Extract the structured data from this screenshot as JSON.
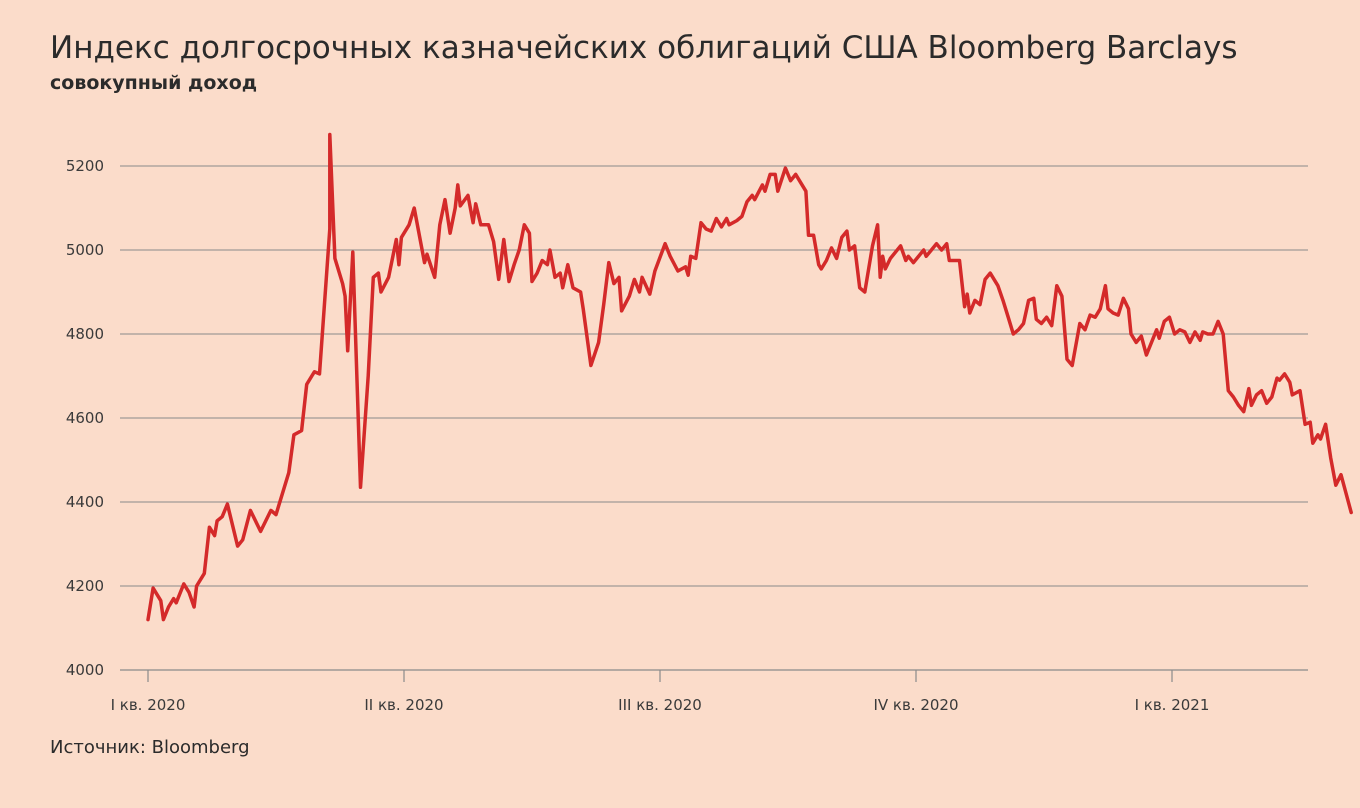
{
  "chart_data": {
    "type": "line",
    "title": "Индекс долгосрочных казначейских облигаций США Bloomberg Barclays",
    "subtitle": "совокупный доход",
    "source": "Источник: Bloomberg",
    "xlabel": "",
    "ylabel": "",
    "ylim": [
      4000,
      5300
    ],
    "yticks": [
      4000,
      4200,
      4400,
      4600,
      4800,
      5000,
      5200
    ],
    "ytick_labels": [
      "4000",
      "4200",
      "4400",
      "4600",
      "4800",
      "5000",
      "5200"
    ],
    "xticks": [
      {
        "label": "I кв. 2020",
        "t": 0
      },
      {
        "label": "II кв. 2020",
        "t": 1
      },
      {
        "label": "III кв. 2020",
        "t": 2
      },
      {
        "label": "IV кв. 2020",
        "t": 3
      },
      {
        "label": "I кв. 2021",
        "t": 4
      }
    ],
    "grid": true,
    "line_color": "#d42a2a",
    "series": [
      {
        "name": "",
        "points": [
          [
            0.0,
            4120
          ],
          [
            0.02,
            4195
          ],
          [
            0.05,
            4165
          ],
          [
            0.06,
            4120
          ],
          [
            0.08,
            4150
          ],
          [
            0.1,
            4170
          ],
          [
            0.11,
            4160
          ],
          [
            0.14,
            4205
          ],
          [
            0.16,
            4185
          ],
          [
            0.18,
            4150
          ],
          [
            0.19,
            4200
          ],
          [
            0.22,
            4230
          ],
          [
            0.24,
            4340
          ],
          [
            0.26,
            4320
          ],
          [
            0.27,
            4355
          ],
          [
            0.29,
            4365
          ],
          [
            0.31,
            4395
          ],
          [
            0.35,
            4295
          ],
          [
            0.37,
            4310
          ],
          [
            0.4,
            4380
          ],
          [
            0.44,
            4330
          ],
          [
            0.48,
            4380
          ],
          [
            0.5,
            4370
          ],
          [
            0.55,
            4470
          ],
          [
            0.57,
            4560
          ],
          [
            0.6,
            4570
          ],
          [
            0.62,
            4680
          ],
          [
            0.64,
            4700
          ],
          [
            0.65,
            4710
          ],
          [
            0.67,
            4705
          ],
          [
            0.71,
            5050
          ],
          [
            0.71,
            5275
          ],
          [
            0.73,
            4980
          ],
          [
            0.76,
            4920
          ],
          [
            0.77,
            4890
          ],
          [
            0.78,
            4760
          ],
          [
            0.8,
            4995
          ],
          [
            0.83,
            4435
          ],
          [
            0.86,
            4700
          ],
          [
            0.88,
            4935
          ],
          [
            0.9,
            4945
          ],
          [
            0.91,
            4900
          ],
          [
            0.94,
            4935
          ],
          [
            0.97,
            5025
          ],
          [
            0.98,
            4965
          ],
          [
            0.99,
            5030
          ],
          [
            1.02,
            5060
          ],
          [
            1.04,
            5100
          ],
          [
            1.08,
            4970
          ],
          [
            1.09,
            4990
          ],
          [
            1.12,
            4935
          ],
          [
            1.14,
            5060
          ],
          [
            1.16,
            5120
          ],
          [
            1.18,
            5040
          ],
          [
            1.2,
            5100
          ],
          [
            1.21,
            5155
          ],
          [
            1.22,
            5105
          ],
          [
            1.25,
            5130
          ],
          [
            1.27,
            5065
          ],
          [
            1.28,
            5110
          ],
          [
            1.3,
            5060
          ],
          [
            1.33,
            5060
          ],
          [
            1.35,
            5020
          ],
          [
            1.37,
            4930
          ],
          [
            1.39,
            5025
          ],
          [
            1.41,
            4925
          ],
          [
            1.43,
            4965
          ],
          [
            1.45,
            5000
          ],
          [
            1.47,
            5060
          ],
          [
            1.49,
            5040
          ],
          [
            1.5,
            4925
          ],
          [
            1.52,
            4945
          ],
          [
            1.54,
            4975
          ],
          [
            1.56,
            4965
          ],
          [
            1.57,
            5000
          ],
          [
            1.59,
            4935
          ],
          [
            1.61,
            4945
          ],
          [
            1.62,
            4910
          ],
          [
            1.64,
            4965
          ],
          [
            1.66,
            4910
          ],
          [
            1.69,
            4900
          ],
          [
            1.7,
            4860
          ],
          [
            1.73,
            4725
          ],
          [
            1.76,
            4780
          ],
          [
            1.78,
            4870
          ],
          [
            1.8,
            4970
          ],
          [
            1.82,
            4920
          ],
          [
            1.84,
            4935
          ],
          [
            1.85,
            4855
          ],
          [
            1.88,
            4890
          ],
          [
            1.9,
            4930
          ],
          [
            1.92,
            4900
          ],
          [
            1.93,
            4935
          ],
          [
            1.96,
            4895
          ],
          [
            1.98,
            4950
          ],
          [
            2.02,
            5015
          ],
          [
            2.04,
            4985
          ],
          [
            2.07,
            4950
          ],
          [
            2.1,
            4960
          ],
          [
            2.11,
            4940
          ],
          [
            2.12,
            4985
          ],
          [
            2.14,
            4980
          ],
          [
            2.16,
            5065
          ],
          [
            2.18,
            5050
          ],
          [
            2.2,
            5045
          ],
          [
            2.22,
            5075
          ],
          [
            2.24,
            5055
          ],
          [
            2.26,
            5075
          ],
          [
            2.27,
            5060
          ],
          [
            2.3,
            5070
          ],
          [
            2.32,
            5080
          ],
          [
            2.34,
            5115
          ],
          [
            2.36,
            5130
          ],
          [
            2.37,
            5120
          ],
          [
            2.4,
            5155
          ],
          [
            2.41,
            5140
          ],
          [
            2.43,
            5180
          ],
          [
            2.45,
            5180
          ],
          [
            2.46,
            5140
          ],
          [
            2.49,
            5195
          ],
          [
            2.51,
            5165
          ],
          [
            2.53,
            5180
          ],
          [
            2.55,
            5160
          ],
          [
            2.57,
            5140
          ],
          [
            2.58,
            5035
          ],
          [
            2.6,
            5035
          ],
          [
            2.62,
            4965
          ],
          [
            2.63,
            4955
          ],
          [
            2.65,
            4975
          ],
          [
            2.67,
            5005
          ],
          [
            2.69,
            4980
          ],
          [
            2.71,
            5030
          ],
          [
            2.73,
            5045
          ],
          [
            2.74,
            5000
          ],
          [
            2.76,
            5010
          ],
          [
            2.78,
            4910
          ],
          [
            2.8,
            4900
          ],
          [
            2.83,
            5010
          ],
          [
            2.85,
            5060
          ],
          [
            2.86,
            4935
          ],
          [
            2.87,
            4985
          ],
          [
            2.88,
            4955
          ],
          [
            2.9,
            4980
          ],
          [
            2.94,
            5010
          ],
          [
            2.96,
            4975
          ],
          [
            2.97,
            4985
          ],
          [
            2.99,
            4970
          ],
          [
            3.01,
            4985
          ],
          [
            3.03,
            5000
          ],
          [
            3.04,
            4985
          ],
          [
            3.06,
            5000
          ],
          [
            3.08,
            5015
          ],
          [
            3.1,
            5000
          ],
          [
            3.12,
            5015
          ],
          [
            3.13,
            4975
          ],
          [
            3.15,
            4975
          ],
          [
            3.17,
            4975
          ],
          [
            3.19,
            4865
          ],
          [
            3.2,
            4895
          ],
          [
            3.21,
            4850
          ],
          [
            3.23,
            4880
          ],
          [
            3.25,
            4870
          ],
          [
            3.27,
            4930
          ],
          [
            3.29,
            4945
          ],
          [
            3.32,
            4915
          ],
          [
            3.34,
            4880
          ],
          [
            3.36,
            4840
          ],
          [
            3.38,
            4800
          ],
          [
            3.4,
            4810
          ],
          [
            3.42,
            4825
          ],
          [
            3.44,
            4880
          ],
          [
            3.46,
            4885
          ],
          [
            3.47,
            4835
          ],
          [
            3.49,
            4825
          ],
          [
            3.51,
            4840
          ],
          [
            3.53,
            4820
          ],
          [
            3.55,
            4915
          ],
          [
            3.57,
            4890
          ],
          [
            3.59,
            4740
          ],
          [
            3.61,
            4725
          ],
          [
            3.64,
            4825
          ],
          [
            3.66,
            4810
          ],
          [
            3.68,
            4845
          ],
          [
            3.7,
            4840
          ],
          [
            3.72,
            4860
          ],
          [
            3.74,
            4915
          ],
          [
            3.75,
            4860
          ],
          [
            3.77,
            4850
          ],
          [
            3.79,
            4845
          ],
          [
            3.81,
            4885
          ],
          [
            3.83,
            4860
          ],
          [
            3.84,
            4800
          ],
          [
            3.86,
            4780
          ],
          [
            3.88,
            4795
          ],
          [
            3.9,
            4750
          ],
          [
            3.92,
            4780
          ],
          [
            3.94,
            4810
          ],
          [
            3.95,
            4790
          ],
          [
            3.97,
            4830
          ],
          [
            3.99,
            4840
          ],
          [
            4.01,
            4800
          ],
          [
            4.03,
            4810
          ],
          [
            4.05,
            4805
          ],
          [
            4.07,
            4780
          ],
          [
            4.09,
            4805
          ],
          [
            4.11,
            4785
          ],
          [
            4.12,
            4805
          ],
          [
            4.14,
            4800
          ],
          [
            4.16,
            4800
          ],
          [
            4.18,
            4830
          ],
          [
            4.2,
            4800
          ],
          [
            4.22,
            4665
          ],
          [
            4.24,
            4650
          ],
          [
            4.26,
            4630
          ],
          [
            4.28,
            4615
          ],
          [
            4.3,
            4670
          ],
          [
            4.31,
            4630
          ],
          [
            4.33,
            4655
          ],
          [
            4.35,
            4665
          ],
          [
            4.37,
            4635
          ],
          [
            4.39,
            4650
          ],
          [
            4.41,
            4695
          ],
          [
            4.42,
            4690
          ],
          [
            4.44,
            4705
          ],
          [
            4.46,
            4685
          ],
          [
            4.47,
            4655
          ],
          [
            4.5,
            4665
          ],
          [
            4.52,
            4585
          ],
          [
            4.54,
            4590
          ],
          [
            4.55,
            4540
          ],
          [
            4.57,
            4560
          ],
          [
            4.58,
            4550
          ],
          [
            4.6,
            4585
          ],
          [
            4.62,
            4505
          ],
          [
            4.64,
            4440
          ],
          [
            4.66,
            4465
          ],
          [
            4.68,
            4420
          ],
          [
            4.7,
            4375
          ]
        ]
      }
    ]
  }
}
